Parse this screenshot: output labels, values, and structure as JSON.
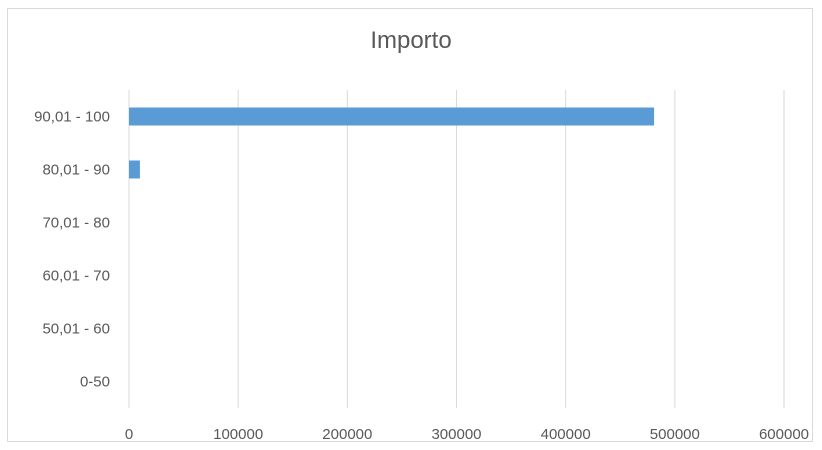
{
  "chart_data": {
    "type": "bar",
    "orientation": "horizontal",
    "title": "Importo",
    "categories": [
      "0-50",
      "50,01 - 60",
      "60,01 - 70",
      "70,01 - 80",
      "80,01 - 90",
      "90,01 - 100"
    ],
    "values": [
      0,
      0,
      0,
      0,
      10000,
      481000
    ],
    "xlim": [
      0,
      600000
    ],
    "x_ticks": [
      0,
      100000,
      200000,
      300000,
      400000,
      500000,
      600000
    ],
    "x_tick_labels": [
      "0",
      "100000",
      "200000",
      "300000",
      "400000",
      "500000",
      "600000"
    ],
    "xlabel": "",
    "ylabel": "",
    "grid": "vertical",
    "legend": "none",
    "bar_color": "#5b9bd5",
    "grid_color": "#d9d9d9"
  }
}
